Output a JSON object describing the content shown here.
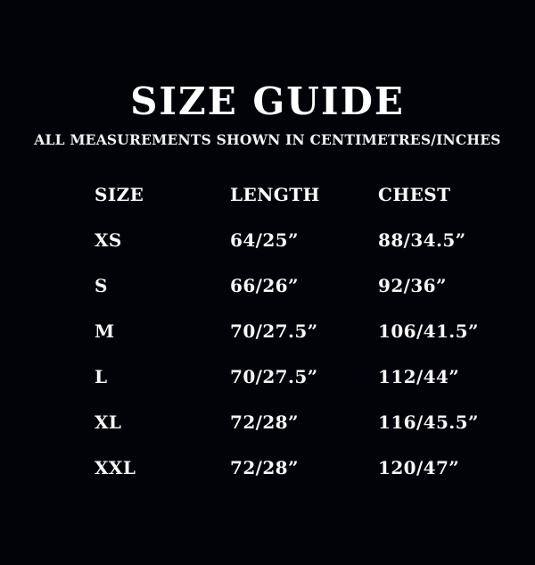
{
  "page": {
    "title": "SIZE GUIDE",
    "subtitle": "ALL MEASUREMENTS SHOWN IN CENTIMETRES/INCHES"
  },
  "table": {
    "headers": [
      "SIZE",
      "LENGTH",
      "CHEST"
    ],
    "rows": [
      {
        "size": "XS",
        "length": "64/25”",
        "chest": "88/34.5”"
      },
      {
        "size": "S",
        "length": "66/26”",
        "chest": "92/36”"
      },
      {
        "size": "M",
        "length": "70/27.5”",
        "chest": "106/41.5”"
      },
      {
        "size": "L",
        "length": "70/27.5”",
        "chest": "112/44”"
      },
      {
        "size": "XL",
        "length": "72/28”",
        "chest": "116/45.5”"
      },
      {
        "size": "XXL",
        "length": "72/28”",
        "chest": "120/47”"
      }
    ]
  },
  "colors": {
    "background": "#020308",
    "text": "#ffffff"
  }
}
